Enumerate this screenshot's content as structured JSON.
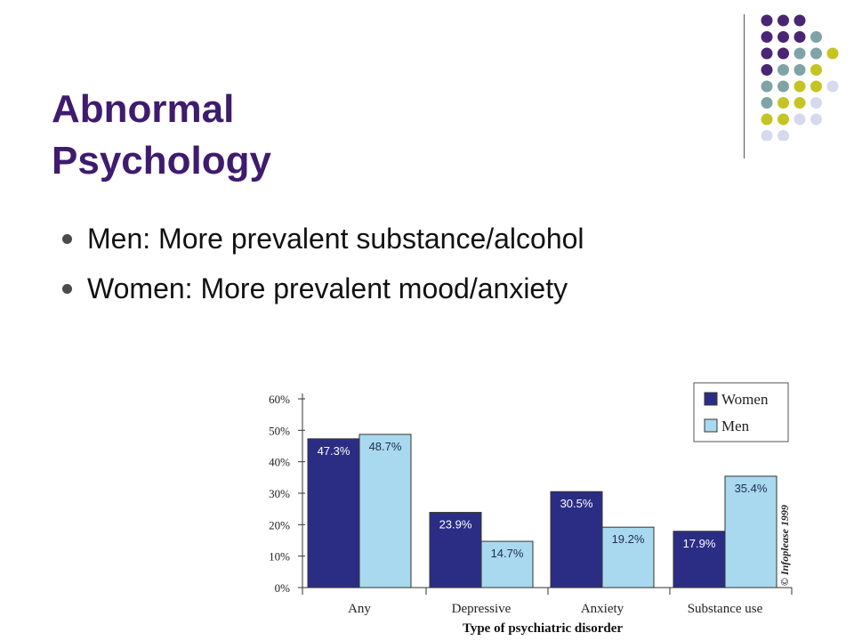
{
  "slide": {
    "title_lines": [
      "Abnormal",
      "Psychology"
    ],
    "bullets": [
      "Men: More prevalent substance/alcohol",
      "Women: More prevalent mood/anxiety"
    ]
  },
  "decoration": {
    "rows": [
      [
        "purple",
        "purple",
        "purple"
      ],
      [
        "purple",
        "purple",
        "purple",
        "teal"
      ],
      [
        "purple",
        "purple",
        "teal",
        "teal",
        "olive"
      ],
      [
        "purple",
        "teal",
        "teal",
        "olive"
      ],
      [
        "teal",
        "teal",
        "olive",
        "olive",
        "lavender"
      ],
      [
        "teal",
        "olive",
        "olive",
        "lavender"
      ],
      [
        "olive",
        "olive",
        "lavender",
        "lavender"
      ],
      [
        "lavender",
        "lavender"
      ]
    ],
    "colors": {
      "purple": "#4a2573",
      "teal": "#7fa3a6",
      "olive": "#c4c423",
      "lavender": "#d7d9ee"
    }
  },
  "chart_data": {
    "type": "bar",
    "categories": [
      "Any",
      "Depressive",
      "Anxiety",
      "Substance use"
    ],
    "series": [
      {
        "name": "Women",
        "values": [
          47.3,
          23.9,
          30.5,
          17.9
        ],
        "color": "#2b2d85"
      },
      {
        "name": "Men",
        "values": [
          48.7,
          14.7,
          19.2,
          35.4
        ],
        "color": "#a9d9ee"
      }
    ],
    "value_labels": {
      "Women": [
        "47.3%",
        "23.9%",
        "30.5%",
        "17.9%"
      ],
      "Men": [
        "48.7%",
        "14.7%",
        "19.2%",
        "35.4%"
      ]
    },
    "xlabel": "Type of psychiatric disorder",
    "ylabel": "",
    "ylim": [
      0,
      60
    ],
    "yticks": [
      0,
      10,
      20,
      30,
      40,
      50,
      60
    ],
    "ytick_labels": [
      "0%",
      "10%",
      "20%",
      "30%",
      "40%",
      "50%",
      "60%"
    ],
    "legend_position": "top-right",
    "grid": false,
    "copyright": "© Infoplease 1999"
  }
}
